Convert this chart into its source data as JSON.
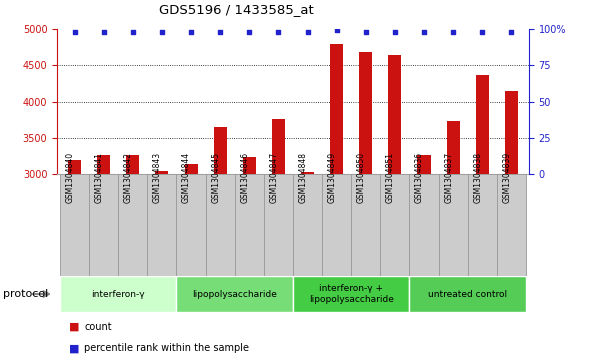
{
  "title": "GDS5196 / 1433585_at",
  "samples": [
    "GSM1304840",
    "GSM1304841",
    "GSM1304842",
    "GSM1304843",
    "GSM1304844",
    "GSM1304845",
    "GSM1304846",
    "GSM1304847",
    "GSM1304848",
    "GSM1304849",
    "GSM1304850",
    "GSM1304851",
    "GSM1304836",
    "GSM1304837",
    "GSM1304838",
    "GSM1304839"
  ],
  "counts": [
    3200,
    3270,
    3260,
    3040,
    3140,
    3650,
    3240,
    3760,
    3030,
    4800,
    4680,
    4640,
    3270,
    3730,
    4370,
    4140
  ],
  "percentiles": [
    98,
    98,
    98,
    98,
    98,
    98,
    98,
    98,
    98,
    99,
    98,
    98,
    98,
    98,
    98,
    98
  ],
  "bar_color": "#cc1111",
  "dot_color": "#2222cc",
  "ylim_left": [
    3000,
    5000
  ],
  "ylim_right": [
    0,
    100
  ],
  "yticks_left": [
    3000,
    3500,
    4000,
    4500,
    5000
  ],
  "yticks_right": [
    0,
    25,
    50,
    75,
    100
  ],
  "ytick_labels_right": [
    "0",
    "25",
    "50",
    "75",
    "100%"
  ],
  "groups": [
    {
      "label": "interferon-γ",
      "start": 0,
      "end": 4,
      "color": "#ccffcc"
    },
    {
      "label": "lipopolysaccharide",
      "start": 4,
      "end": 8,
      "color": "#77dd77"
    },
    {
      "label": "interferon-γ +\nlipopolysaccharide",
      "start": 8,
      "end": 12,
      "color": "#44cc44"
    },
    {
      "label": "untreated control",
      "start": 12,
      "end": 16,
      "color": "#55cc55"
    }
  ],
  "protocol_label": "protocol",
  "legend_count_label": "count",
  "legend_pct_label": "percentile rank within the sample",
  "bar_width": 0.45,
  "sample_box_color": "#cccccc",
  "sample_box_edge": "#999999"
}
